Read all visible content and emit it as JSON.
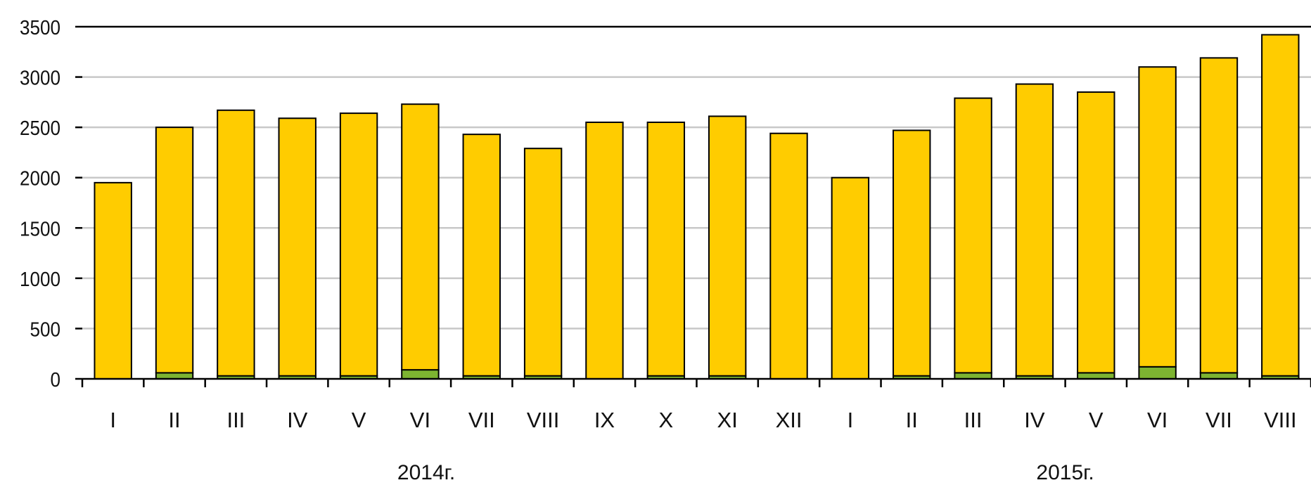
{
  "chart_data": {
    "type": "bar",
    "stacked": true,
    "categories": [
      "I",
      "II",
      "III",
      "IV",
      "V",
      "VI",
      "VII",
      "VIII",
      "IX",
      "X",
      "XI",
      "XII",
      "I",
      "II",
      "III",
      "IV",
      "V",
      "VI",
      "VII",
      "VIII"
    ],
    "groups": [
      {
        "label": "2014г.",
        "from": 0,
        "to": 11
      },
      {
        "label": "2015г.",
        "from": 12,
        "to": 19
      }
    ],
    "series": [
      {
        "color": "#7db431",
        "values": [
          0,
          60,
          30,
          30,
          30,
          90,
          30,
          30,
          0,
          30,
          30,
          0,
          0,
          30,
          60,
          30,
          60,
          120,
          60,
          30
        ]
      },
      {
        "color": "#ffcc00",
        "values": [
          1950,
          2440,
          2640,
          2560,
          2610,
          2640,
          2400,
          2260,
          2550,
          2520,
          2580,
          2440,
          2000,
          2440,
          2730,
          2900,
          2790,
          2980,
          3130,
          3390
        ]
      }
    ],
    "yticks": [
      0,
      500,
      1000,
      1500,
      2000,
      2500,
      3000,
      3500
    ],
    "ylim": [
      0,
      3500
    ],
    "grid": true
  }
}
